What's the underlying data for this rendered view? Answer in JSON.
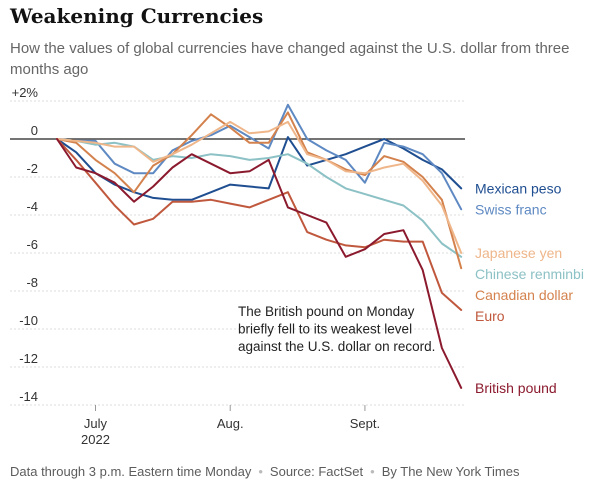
{
  "title": "Weakening Currencies",
  "subtitle": "How the values of global currencies have changed against the U.S. dollar from three months ago",
  "footer": {
    "note": "Data through 3 p.m. Eastern time Monday",
    "source": "Source: FactSet",
    "credit": "By The New York Times",
    "separator": "•"
  },
  "chart_data": {
    "type": "line",
    "y_ticks": [
      "+2%",
      "0",
      "-2",
      "-4",
      "-6",
      "-8",
      "-10",
      "-12",
      "-14"
    ],
    "y_tick_values": [
      2,
      0,
      -2,
      -4,
      -6,
      -8,
      -10,
      -12,
      -14
    ],
    "ylim": [
      -14,
      2
    ],
    "x_ticks": [
      {
        "label": "July",
        "sub": "2022",
        "x": 2
      },
      {
        "label": "Aug.",
        "sub": "",
        "x": 9
      },
      {
        "label": "Sept.",
        "sub": "",
        "x": 16
      }
    ],
    "xlim": [
      0,
      21.2
    ],
    "grid": "horizontal",
    "annotation": [
      "The British pound on Monday",
      "briefly fell to its weakest level",
      "against the U.S. dollar on record."
    ],
    "series": [
      {
        "name": "Mexican peso",
        "color": "#1f4e91",
        "x": [
          0,
          1,
          2,
          3,
          4,
          5,
          6,
          7,
          8,
          9,
          10,
          11,
          12,
          13,
          14,
          15,
          16,
          17,
          18,
          19,
          20,
          21
        ],
        "values": [
          0,
          -0.7,
          -1.8,
          -2.4,
          -2.8,
          -3.1,
          -3.2,
          -3.2,
          -2.8,
          -2.4,
          -2.5,
          -2.6,
          0.1,
          -1.4,
          -1.1,
          -0.8,
          -0.4,
          0,
          -0.5,
          -1.1,
          -1.6,
          -2.6
        ]
      },
      {
        "name": "Swiss franc",
        "color": "#5e89c2",
        "x": [
          0,
          1,
          2,
          3,
          4,
          5,
          6,
          7,
          8,
          9,
          10,
          11,
          12,
          13,
          14,
          15,
          16,
          17,
          18,
          19,
          20,
          21
        ],
        "values": [
          0,
          -0.1,
          -0.1,
          -1.3,
          -1.8,
          -1.8,
          -0.6,
          -0.1,
          0.2,
          0.7,
          0.1,
          -0.5,
          1.8,
          0,
          -0.6,
          -1.1,
          -2.3,
          -0.2,
          -0.4,
          -0.8,
          -1.8,
          -3.7
        ]
      },
      {
        "name": "Chinese renminbi",
        "color": "#8cc1c5",
        "x": [
          0,
          1,
          2,
          3,
          4,
          5,
          6,
          7,
          8,
          9,
          10,
          11,
          12,
          13,
          14,
          15,
          16,
          17,
          18,
          19,
          20,
          21
        ],
        "values": [
          0,
          -0.1,
          -0.3,
          -0.2,
          -0.4,
          -1.1,
          -0.9,
          -1.0,
          -0.8,
          -0.9,
          -1.1,
          -1.0,
          -0.8,
          -1.3,
          -2.0,
          -2.6,
          -2.9,
          -3.2,
          -3.5,
          -4.3,
          -5.5,
          -6.2
        ]
      },
      {
        "name": "Canadian dollar",
        "color": "#d4824d",
        "x": [
          0,
          1,
          2,
          3,
          4,
          5,
          6,
          7,
          8,
          9,
          10,
          11,
          12,
          13,
          14,
          15,
          16,
          17,
          18,
          19,
          20,
          21
        ],
        "values": [
          0,
          -0.2,
          -1.1,
          -1.8,
          -2.8,
          -1.4,
          -0.8,
          0.2,
          1.3,
          0.6,
          -0.2,
          -0.2,
          1.4,
          -0.7,
          -1.1,
          -1.6,
          -1.9,
          -0.9,
          -1.2,
          -2.0,
          -3.2,
          -6.8
        ]
      },
      {
        "name": "Japanese yen",
        "color": "#efb68a",
        "x": [
          0,
          1,
          2,
          3,
          4,
          5,
          6,
          7,
          8,
          9,
          10,
          11,
          12,
          13,
          14,
          15,
          16,
          17,
          18,
          19,
          20,
          21
        ],
        "values": [
          0,
          -0.1,
          -0.2,
          -0.4,
          -0.4,
          -1.2,
          -0.8,
          -0.3,
          0.3,
          0.9,
          0.3,
          0.4,
          0.9,
          -0.8,
          -1.1,
          -1.7,
          -1.8,
          -1.5,
          -1.3,
          -2.2,
          -3.5,
          -6.0
        ]
      },
      {
        "name": "Euro",
        "color": "#c0583d",
        "x": [
          0,
          1,
          2,
          3,
          4,
          5,
          6,
          7,
          8,
          9,
          10,
          11,
          12,
          13,
          14,
          15,
          16,
          17,
          18,
          19,
          20,
          21
        ],
        "values": [
          0,
          -1.1,
          -2.3,
          -3.5,
          -4.5,
          -4.2,
          -3.3,
          -3.3,
          -3.2,
          -3.4,
          -3.6,
          -3.2,
          -2.8,
          -4.9,
          -5.3,
          -5.6,
          -5.7,
          -5.3,
          -5.4,
          -5.4,
          -8.1,
          -9.0
        ]
      },
      {
        "name": "British pound",
        "color": "#8b1a2e",
        "x": [
          0,
          1,
          2,
          3,
          4,
          5,
          6,
          7,
          8,
          9,
          10,
          11,
          12,
          13,
          14,
          15,
          16,
          17,
          18,
          19,
          20,
          21
        ],
        "values": [
          0,
          -1.5,
          -1.8,
          -2.3,
          -3.3,
          -2.5,
          -1.5,
          -0.8,
          -1.3,
          -1.8,
          -1.7,
          -1.1,
          -3.6,
          -4.0,
          -4.4,
          -6.2,
          -5.8,
          -5.0,
          -4.8,
          -6.9,
          -11.0,
          -13.1
        ]
      }
    ]
  }
}
